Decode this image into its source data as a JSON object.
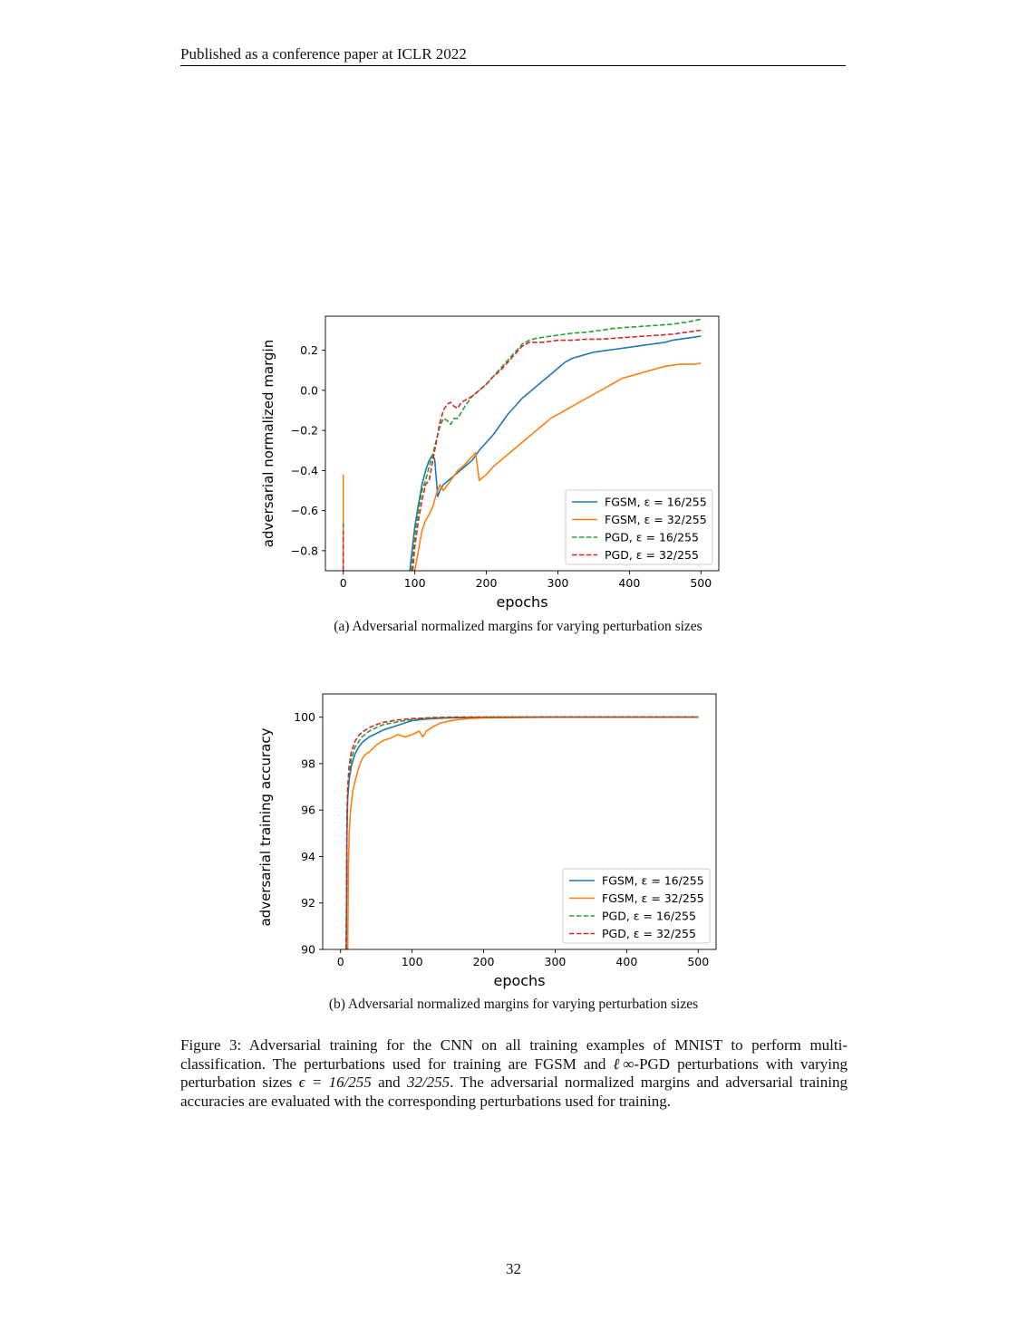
{
  "page": {
    "header": "Published as a conference paper at ICLR 2022",
    "page_number": "32",
    "caption_label": "Figure 3:",
    "caption_text_1": "Adversarial training for the CNN on all training examples of MNIST to perform multi-classification. The perturbations used for training are FGSM and ",
    "caption_math_linf": "ℓ∞",
    "caption_text_2": "-PGD perturbations with varying perturbation sizes ",
    "caption_math_eps": "ϵ = 16/255",
    "caption_text_3": " and ",
    "caption_math_32": "32/255",
    "caption_text_4": ". The adversarial normalized margins and adversarial training accuracies are evaluated with the corresponding perturbations used for training.",
    "subcaption_a": "(a) Adversarial normalized margins for varying perturbation sizes",
    "subcaption_b": "(b) Adversarial normalized margins for varying perturbation sizes"
  },
  "chart_data": [
    {
      "type": "line",
      "xlabel": "epochs",
      "ylabel": "adversarial normalized margin",
      "xlim": [
        -25,
        525
      ],
      "ylim": [
        -0.9,
        0.37
      ],
      "xticks": [
        0,
        100,
        200,
        300,
        400,
        500
      ],
      "yticks": [
        -0.8,
        -0.6,
        -0.4,
        -0.2,
        0.0,
        0.2
      ],
      "ytick_labels": [
        "−0.8",
        "−0.6",
        "−0.4",
        "−0.2",
        "0.0",
        "0.2"
      ],
      "legend_position": "lower right",
      "series": [
        {
          "name": "FGSM, ε = 16/255",
          "color": "#1f77b4",
          "dash": "solid",
          "x": [
            93,
            100,
            105,
            110,
            115,
            120,
            125,
            128,
            132,
            135,
            140,
            150,
            160,
            170,
            180,
            190,
            200,
            210,
            220,
            230,
            240,
            250,
            260,
            270,
            280,
            290,
            300,
            310,
            320,
            330,
            340,
            350,
            360,
            370,
            380,
            390,
            400,
            410,
            420,
            430,
            440,
            450,
            460,
            470,
            480,
            490,
            500
          ],
          "y": [
            -0.9,
            -0.68,
            -0.57,
            -0.47,
            -0.4,
            -0.35,
            -0.32,
            -0.35,
            -0.53,
            -0.5,
            -0.47,
            -0.44,
            -0.41,
            -0.38,
            -0.35,
            -0.3,
            -0.26,
            -0.22,
            -0.17,
            -0.12,
            -0.08,
            -0.04,
            -0.01,
            0.02,
            0.05,
            0.08,
            0.11,
            0.14,
            0.16,
            0.17,
            0.18,
            0.19,
            0.195,
            0.2,
            0.205,
            0.21,
            0.215,
            0.22,
            0.225,
            0.23,
            0.235,
            0.24,
            0.25,
            0.255,
            0.26,
            0.265,
            0.27
          ]
        },
        {
          "name": "FGSM, ε = 32/255",
          "color": "#ff7f0e",
          "dash": "solid",
          "x": [
            100,
            105,
            110,
            115,
            120,
            125,
            130,
            135,
            140,
            150,
            160,
            170,
            180,
            185,
            190,
            200,
            210,
            220,
            230,
            240,
            250,
            260,
            270,
            280,
            290,
            300,
            310,
            320,
            330,
            340,
            350,
            360,
            370,
            380,
            390,
            400,
            410,
            420,
            430,
            440,
            450,
            460,
            470,
            480,
            490,
            500
          ],
          "y": [
            -0.9,
            -0.8,
            -0.7,
            -0.65,
            -0.62,
            -0.58,
            -0.52,
            -0.47,
            -0.5,
            -0.45,
            -0.4,
            -0.37,
            -0.33,
            -0.31,
            -0.45,
            -0.42,
            -0.38,
            -0.35,
            -0.32,
            -0.29,
            -0.26,
            -0.23,
            -0.2,
            -0.17,
            -0.14,
            -0.12,
            -0.1,
            -0.08,
            -0.06,
            -0.04,
            -0.02,
            0.0,
            0.02,
            0.04,
            0.06,
            0.07,
            0.08,
            0.09,
            0.1,
            0.11,
            0.12,
            0.125,
            0.13,
            0.13,
            0.13,
            0.135
          ]
        },
        {
          "name": "PGD, ε = 16/255",
          "color": "#2ca02c",
          "dash": "dashed",
          "x": [
            95,
            100,
            105,
            110,
            115,
            120,
            125,
            130,
            135,
            140,
            145,
            150,
            155,
            160,
            170,
            180,
            190,
            200,
            210,
            220,
            230,
            240,
            250,
            260,
            270,
            280,
            290,
            300,
            320,
            340,
            360,
            380,
            400,
            420,
            440,
            460,
            480,
            500
          ],
          "y": [
            -0.9,
            -0.72,
            -0.6,
            -0.5,
            -0.45,
            -0.38,
            -0.32,
            -0.25,
            -0.18,
            -0.14,
            -0.15,
            -0.17,
            -0.14,
            -0.14,
            -0.08,
            -0.03,
            0.0,
            0.03,
            0.07,
            0.11,
            0.15,
            0.19,
            0.23,
            0.25,
            0.26,
            0.265,
            0.27,
            0.275,
            0.285,
            0.29,
            0.3,
            0.31,
            0.315,
            0.32,
            0.325,
            0.33,
            0.34,
            0.355
          ]
        },
        {
          "name": "PGD, ε = 32/255",
          "color": "#d62728",
          "dash": "dashed",
          "x": [
            97,
            100,
            105,
            110,
            115,
            120,
            125,
            130,
            135,
            140,
            145,
            150,
            155,
            160,
            165,
            170,
            180,
            190,
            200,
            210,
            220,
            230,
            240,
            250,
            260,
            270,
            280,
            290,
            300,
            320,
            340,
            360,
            380,
            400,
            420,
            440,
            460,
            480,
            500
          ],
          "y": [
            -0.9,
            -0.78,
            -0.65,
            -0.55,
            -0.47,
            -0.45,
            -0.35,
            -0.26,
            -0.16,
            -0.1,
            -0.07,
            -0.06,
            -0.08,
            -0.09,
            -0.06,
            -0.05,
            -0.03,
            0.0,
            0.03,
            0.07,
            0.1,
            0.14,
            0.18,
            0.22,
            0.24,
            0.24,
            0.24,
            0.245,
            0.25,
            0.25,
            0.255,
            0.255,
            0.26,
            0.265,
            0.27,
            0.275,
            0.28,
            0.29,
            0.3
          ]
        },
        {
          "name": "epoch0-spike-orange",
          "color": "#ff7f0e",
          "dash": "solid",
          "x": [
            0,
            0
          ],
          "y": [
            -0.9,
            -0.42
          ],
          "hidden_legend": true
        },
        {
          "name": "epoch0-spike-green",
          "color": "#2ca02c",
          "dash": "dashed",
          "x": [
            0,
            0
          ],
          "y": [
            -0.9,
            -0.65
          ],
          "hidden_legend": true
        },
        {
          "name": "epoch0-spike-red",
          "color": "#d62728",
          "dash": "dashed",
          "x": [
            0,
            0
          ],
          "y": [
            -0.9,
            -0.7
          ],
          "hidden_legend": true
        }
      ]
    },
    {
      "type": "line",
      "xlabel": "epochs",
      "ylabel": "adversarial training accuracy",
      "xlim": [
        -25,
        525
      ],
      "ylim": [
        90,
        101
      ],
      "xticks": [
        0,
        100,
        200,
        300,
        400,
        500
      ],
      "yticks": [
        90,
        92,
        94,
        96,
        98,
        100
      ],
      "ytick_labels": [
        "90",
        "92",
        "94",
        "96",
        "98",
        "100"
      ],
      "legend_position": "lower right",
      "series": [
        {
          "name": "FGSM, ε = 16/255",
          "color": "#1f77b4",
          "dash": "solid",
          "x": [
            8,
            9,
            10,
            12,
            15,
            20,
            25,
            30,
            40,
            50,
            60,
            70,
            80,
            90,
            100,
            120,
            150,
            200,
            300,
            400,
            500
          ],
          "y": [
            90,
            95,
            96.5,
            97.3,
            97.9,
            98.4,
            98.7,
            98.9,
            99.15,
            99.3,
            99.45,
            99.55,
            99.65,
            99.75,
            99.85,
            99.92,
            99.97,
            99.99,
            100,
            100,
            100
          ]
        },
        {
          "name": "FGSM, ε = 32/255",
          "color": "#ff7f0e",
          "dash": "solid",
          "x": [
            10,
            11,
            12,
            14,
            17,
            20,
            25,
            30,
            35,
            40,
            50,
            60,
            70,
            80,
            90,
            100,
            110,
            115,
            120,
            130,
            140,
            150,
            160,
            180,
            200,
            250,
            300,
            400,
            500
          ],
          "y": [
            90,
            93.5,
            95,
            96,
            96.8,
            97.2,
            97.8,
            98.2,
            98.4,
            98.5,
            98.8,
            99.0,
            99.1,
            99.25,
            99.15,
            99.25,
            99.4,
            99.15,
            99.4,
            99.6,
            99.75,
            99.82,
            99.88,
            99.94,
            99.97,
            99.99,
            100,
            100,
            100
          ]
        },
        {
          "name": "PGD, ε = 16/255",
          "color": "#2ca02c",
          "dash": "dashed",
          "x": [
            8,
            9,
            10,
            12,
            15,
            20,
            25,
            30,
            40,
            50,
            60,
            80,
            100,
            130,
            160,
            200,
            300,
            400,
            500
          ],
          "y": [
            90,
            95.5,
            96.8,
            97.6,
            98.2,
            98.7,
            98.95,
            99.15,
            99.4,
            99.55,
            99.68,
            99.8,
            99.9,
            99.96,
            99.99,
            100,
            100,
            100,
            100
          ]
        },
        {
          "name": "PGD, ε = 32/255",
          "color": "#d62728",
          "dash": "dashed",
          "x": [
            8,
            9,
            10,
            12,
            15,
            20,
            25,
            30,
            40,
            50,
            60,
            80,
            100,
            130,
            160,
            200,
            300,
            400,
            500
          ],
          "y": [
            90,
            95.8,
            97.0,
            97.9,
            98.5,
            98.95,
            99.2,
            99.35,
            99.55,
            99.68,
            99.78,
            99.88,
            99.94,
            99.98,
            100,
            100,
            100,
            100,
            100
          ]
        }
      ]
    }
  ]
}
